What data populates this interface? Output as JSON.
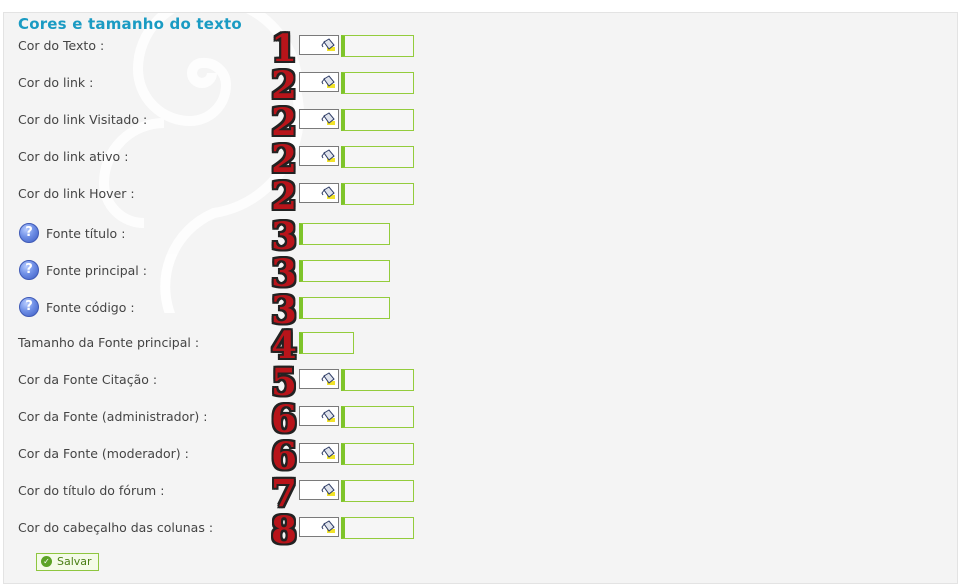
{
  "title": "Cores e tamanho do texto",
  "separator": ":",
  "rows": [
    {
      "label": "Cor do Texto",
      "number": "1"
    },
    {
      "label": "Cor do link",
      "number": "2"
    },
    {
      "label": "Cor do link Visitado",
      "number": "2"
    },
    {
      "label": "Cor do link ativo",
      "number": "2"
    },
    {
      "label": "Cor do link Hover",
      "number": "2"
    },
    {
      "label": "Fonte título",
      "number": "3"
    },
    {
      "label": "Fonte principal",
      "number": "3"
    },
    {
      "label": "Fonte código",
      "number": "3"
    },
    {
      "label": "Tamanho da Fonte principal",
      "number": "4"
    },
    {
      "label": "Cor da Fonte Citação",
      "number": "5"
    },
    {
      "label": "Cor da Fonte (administrador)",
      "number": "6"
    },
    {
      "label": "Cor da Fonte (moderador)",
      "number": "6"
    },
    {
      "label": "Cor do título do fórum",
      "number": "7"
    },
    {
      "label": "Cor do cabeçalho das colunas",
      "number": "8"
    }
  ],
  "help_glyph": "?",
  "save_label": "Salvar",
  "icons": {
    "picker": "paint-bucket-icon",
    "help": "help-icon",
    "save": "checkmark-icon"
  },
  "colors": {
    "title": "#1a9bc3",
    "number": "#b8141a",
    "input_border": "#7ec42a",
    "help": "#5b7bd9"
  }
}
